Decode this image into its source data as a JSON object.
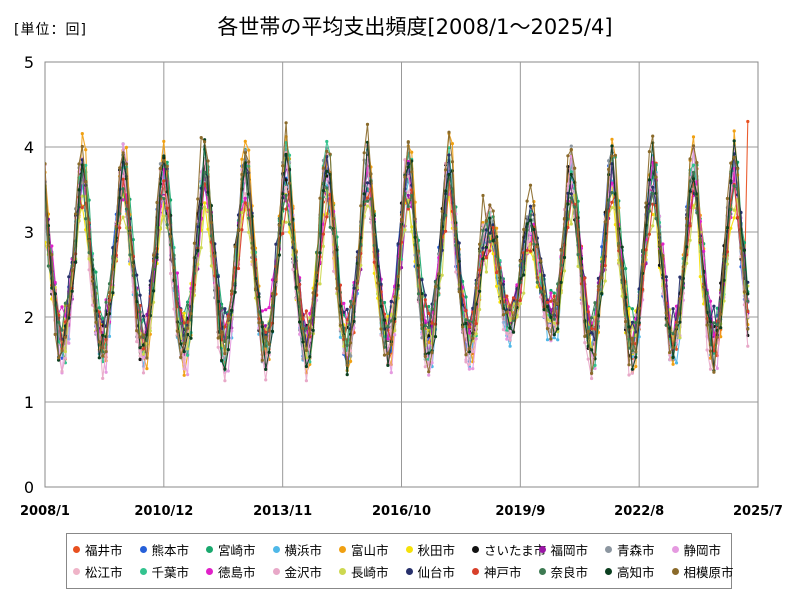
{
  "unit_label": "[単位：回]",
  "title": "各世帯の平均支出頻度[2008/1～2025/4]",
  "chart_data": {
    "type": "line",
    "title": "各世帯の平均支出頻度[2008/1～2025/4]",
    "unit": "[単位：回]",
    "xlabel": "",
    "ylabel": "",
    "x_ticks": [
      "2008/1",
      "2010/12",
      "2013/11",
      "2016/10",
      "2019/9",
      "2022/8",
      "2025/7"
    ],
    "x_range": [
      "2008/1",
      "2025/7"
    ],
    "ylim": [
      0,
      5
    ],
    "y_ticks": [
      0,
      1,
      2,
      3,
      4,
      5
    ],
    "grid": true,
    "legend_position": "bottom",
    "series": [
      {
        "name": "福井市",
        "color": "#e8501f"
      },
      {
        "name": "熊本市",
        "color": "#2660d9"
      },
      {
        "name": "宮崎市",
        "color": "#1aa86e"
      },
      {
        "name": "横浜市",
        "color": "#4fb8e8"
      },
      {
        "name": "富山市",
        "color": "#f0a012"
      },
      {
        "name": "秋田市",
        "color": "#f5e10a"
      },
      {
        "name": "さいたま市",
        "color": "#111111"
      },
      {
        "name": "福岡市",
        "color": "#9b16a6"
      },
      {
        "name": "青森市",
        "color": "#8c96a0"
      },
      {
        "name": "静岡市",
        "color": "#e59ae0"
      },
      {
        "name": "松江市",
        "color": "#efb4c8"
      },
      {
        "name": "千葉市",
        "color": "#33c38f"
      },
      {
        "name": "徳島市",
        "color": "#e021c8"
      },
      {
        "name": "金沢市",
        "color": "#e8a8c8"
      },
      {
        "name": "長崎市",
        "color": "#cdd850"
      },
      {
        "name": "仙台市",
        "color": "#27306b"
      },
      {
        "name": "神戸市",
        "color": "#d8402a"
      },
      {
        "name": "奈良市",
        "color": "#3d7a52"
      },
      {
        "name": "高知市",
        "color": "#0b3f1f"
      },
      {
        "name": "相模原市",
        "color": "#8a6a2a"
      }
    ],
    "series_pattern": {
      "annual_peaks_month": 12,
      "annual_troughs_month": 2,
      "typical_peak_range": [
        3.5,
        4.9
      ],
      "typical_trough_range": [
        1.0,
        1.8
      ],
      "last_value_fukui": 4.3
    }
  }
}
